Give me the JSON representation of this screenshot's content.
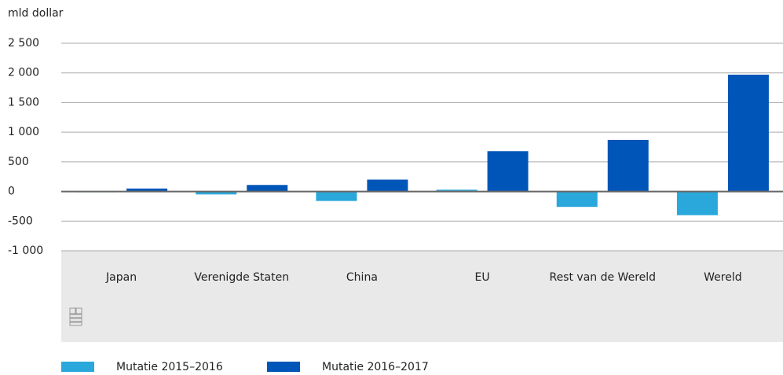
{
  "chart_data": {
    "type": "bar",
    "y_label": "mld dollar",
    "categories": [
      "Japan",
      "Verenigde Staten",
      "China",
      "EU",
      "Rest van de Wereld",
      "Wereld"
    ],
    "series": [
      {
        "name": "Mutatie 2015–2016",
        "color": "#2aa8dc",
        "values": [
          -10,
          -50,
          -160,
          30,
          -260,
          -400
        ]
      },
      {
        "name": "Mutatie 2016–2017",
        "color": "#0055b8",
        "values": [
          50,
          110,
          200,
          680,
          870,
          1970
        ]
      }
    ],
    "ylim": [
      -1000,
      2500
    ],
    "yticks": [
      {
        "value": -1000,
        "label": "-1 000"
      },
      -500,
      0,
      500,
      {
        "value": 1000,
        "label": "1 000"
      },
      {
        "value": 1500,
        "label": "1 500"
      },
      {
        "value": 2000,
        "label": "2 000"
      },
      {
        "value": 2500,
        "label": "2 500"
      }
    ],
    "grid": true
  }
}
